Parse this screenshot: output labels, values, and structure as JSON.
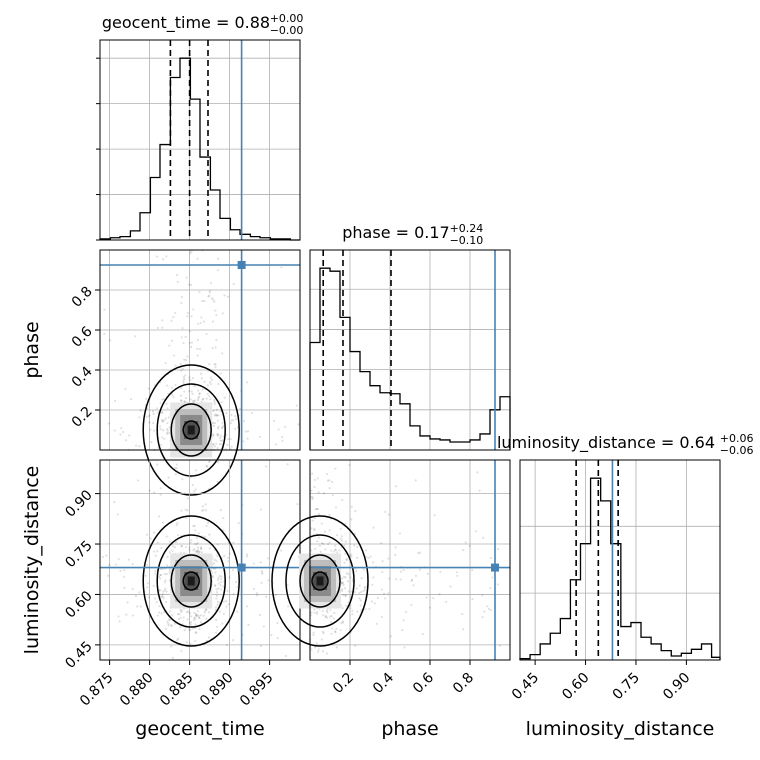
{
  "chart_data": {
    "type": "corner",
    "parameters": [
      {
        "name": "geocent_time",
        "axis_label": "geocent_time",
        "range": [
          0.8738,
          0.8988
        ],
        "ticks": [
          0.875,
          0.88,
          0.885,
          0.89,
          0.895
        ],
        "tick_labels": [
          "0.875",
          "0.880",
          "0.885",
          "0.890",
          "0.895"
        ]
      },
      {
        "name": "phase",
        "axis_label": "phase",
        "range": [
          0.0,
          1.0
        ],
        "ticks": [
          0.2,
          0.4,
          0.6,
          0.8
        ],
        "tick_labels": [
          "0.2",
          "0.4",
          "0.6",
          "0.8"
        ]
      },
      {
        "name": "luminosity_distance",
        "axis_label": "luminosity_distance",
        "range": [
          0.405,
          1.0
        ],
        "ticks": [
          0.45,
          0.6,
          0.75,
          0.9
        ],
        "tick_labels": [
          "0.45",
          "0.60",
          "0.75",
          "0.90"
        ]
      }
    ],
    "titles": [
      {
        "text": "geocent_time = 0.88",
        "sup": "+0.00",
        "sub": "−0.00"
      },
      {
        "text": "phase = 0.17",
        "sup": "+0.24",
        "sub": "−0.10"
      },
      {
        "text": "luminosity_distance = 0.64",
        "sup": "+0.06",
        "sub": "−0.06"
      }
    ],
    "quantiles": [
      [
        0.8826,
        0.885,
        0.8873
      ],
      [
        0.066,
        0.165,
        0.405
      ],
      [
        0.572,
        0.638,
        0.697
      ]
    ],
    "truths": [
      0.8915,
      0.925,
      0.68
    ],
    "truth_color": "#4682b4",
    "histograms": [
      {
        "bin_edges": [
          0.8738,
          0.8751,
          0.8763,
          0.8776,
          0.8788,
          0.8801,
          0.8813,
          0.8826,
          0.8838,
          0.8851,
          0.8863,
          0.8876,
          0.8888,
          0.8901,
          0.8913,
          0.8926,
          0.8938,
          0.8951,
          0.8963,
          0.8976,
          0.8988
        ],
        "counts": [
          1,
          2,
          3,
          8,
          24,
          55,
          84,
          143,
          160,
          124,
          73,
          44,
          19,
          9,
          5,
          3,
          2,
          1,
          1,
          0
        ]
      },
      {
        "bin_edges": [
          0.0,
          0.05,
          0.1,
          0.15,
          0.2,
          0.25,
          0.3,
          0.35,
          0.4,
          0.45,
          0.5,
          0.55,
          0.6,
          0.65,
          0.7,
          0.75,
          0.8,
          0.85,
          0.9,
          0.95,
          1.0
        ],
        "counts": [
          107,
          181,
          178,
          132,
          98,
          78,
          64,
          57,
          56,
          46,
          24,
          14,
          11,
          10,
          8,
          8,
          10,
          16,
          40,
          53
        ]
      },
      {
        "bin_edges": [
          0.405,
          0.435,
          0.465,
          0.495,
          0.525,
          0.555,
          0.585,
          0.615,
          0.645,
          0.675,
          0.705,
          0.735,
          0.765,
          0.795,
          0.825,
          0.855,
          0.885,
          0.915,
          0.945,
          0.975,
          1.0
        ],
        "counts": [
          1,
          4,
          12,
          20,
          31,
          60,
          87,
          136,
          119,
          87,
          25,
          28,
          17,
          12,
          7,
          3,
          5,
          8,
          12,
          2
        ]
      }
    ],
    "contour_cores": [
      {
        "x": "geocent_time",
        "y": "phase",
        "mode": [
          0.8852,
          0.1
        ]
      },
      {
        "x": "geocent_time",
        "y": "luminosity_distance",
        "mode": [
          0.8852,
          0.64
        ]
      },
      {
        "x": "phase",
        "y": "luminosity_distance",
        "mode": [
          0.05,
          0.64
        ]
      }
    ]
  }
}
